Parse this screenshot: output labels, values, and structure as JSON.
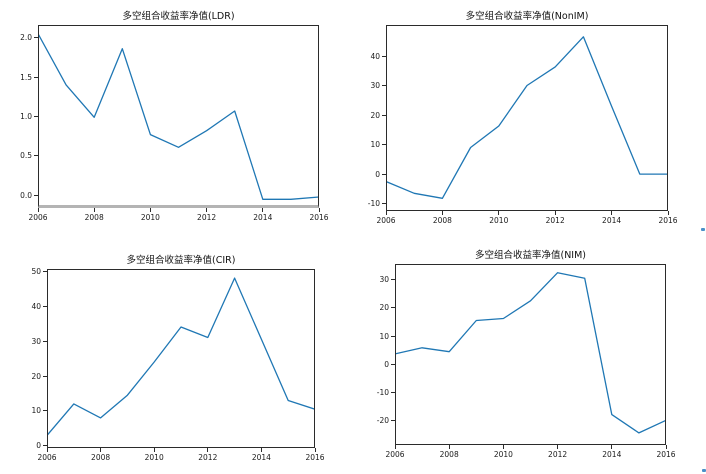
{
  "figure": {
    "background": "#ffffff",
    "line_color": "#1f77b4"
  },
  "chart_data": [
    {
      "type": "line",
      "title": "多空组合收益率净值(LDR)",
      "x": [
        2006,
        2007,
        2008,
        2009,
        2010,
        2011,
        2012,
        2013,
        2014,
        2015,
        2016
      ],
      "values": [
        2.05,
        1.4,
        0.99,
        1.86,
        0.77,
        0.61,
        0.82,
        1.07,
        -0.05,
        -0.05,
        -0.02
      ],
      "xticks": [
        {
          "v": 2006,
          "label": "2006"
        },
        {
          "v": 2008,
          "label": "2008"
        },
        {
          "v": 2010,
          "label": "2010"
        },
        {
          "v": 2012,
          "label": "2012"
        },
        {
          "v": 2014,
          "label": "2014"
        },
        {
          "v": 2016,
          "label": "2016"
        }
      ],
      "yticks": [
        {
          "v": 0.0,
          "label": "0.0"
        },
        {
          "v": 0.5,
          "label": "0.5"
        },
        {
          "v": 1.0,
          "label": "1.0"
        },
        {
          "v": 1.5,
          "label": "1.5"
        },
        {
          "v": 2.0,
          "label": "2.0"
        }
      ],
      "xlim": [
        2006,
        2016
      ],
      "ylim": [
        -0.16,
        2.16
      ],
      "line_color": "#1f77b4",
      "grid": false,
      "legend": null
    },
    {
      "type": "line",
      "title": "多空组合收益率净值(NonIM)",
      "x": [
        2006,
        2007,
        2008,
        2009,
        2010,
        2011,
        2012,
        2013,
        2014,
        2015,
        2016
      ],
      "values": [
        -2.5,
        -6.5,
        -8.2,
        9.0,
        16.3,
        30.0,
        36.3,
        46.5,
        23.0,
        0.0,
        0.0
      ],
      "xticks": [
        {
          "v": 2006,
          "label": "2006"
        },
        {
          "v": 2008,
          "label": "2008"
        },
        {
          "v": 2010,
          "label": "2010"
        },
        {
          "v": 2012,
          "label": "2012"
        },
        {
          "v": 2014,
          "label": "2014"
        },
        {
          "v": 2016,
          "label": "2016"
        }
      ],
      "yticks": [
        {
          "v": -10,
          "label": "-10"
        },
        {
          "v": 0,
          "label": "0"
        },
        {
          "v": 10,
          "label": "10"
        },
        {
          "v": 20,
          "label": "20"
        },
        {
          "v": 30,
          "label": "30"
        },
        {
          "v": 40,
          "label": "40"
        }
      ],
      "xlim": [
        2006,
        2016
      ],
      "ylim": [
        -12.5,
        50.5
      ],
      "line_color": "#1f77b4",
      "grid": false,
      "legend": null
    },
    {
      "type": "line",
      "title": "多空组合收益率净值(CIR)",
      "x": [
        2006,
        2007,
        2008,
        2009,
        2010,
        2011,
        2012,
        2013,
        2014,
        2015,
        2016
      ],
      "values": [
        3.0,
        12.0,
        8.0,
        14.5,
        24.0,
        34.0,
        31.0,
        48.0,
        30.5,
        13.0,
        10.5
      ],
      "xticks": [
        {
          "v": 2006,
          "label": "2006"
        },
        {
          "v": 2008,
          "label": "2008"
        },
        {
          "v": 2010,
          "label": "2010"
        },
        {
          "v": 2012,
          "label": "2012"
        },
        {
          "v": 2014,
          "label": "2014"
        },
        {
          "v": 2016,
          "label": "2016"
        }
      ],
      "yticks": [
        {
          "v": 0,
          "label": "0"
        },
        {
          "v": 10,
          "label": "10"
        },
        {
          "v": 20,
          "label": "20"
        },
        {
          "v": 30,
          "label": "30"
        },
        {
          "v": 40,
          "label": "40"
        },
        {
          "v": 50,
          "label": "50"
        }
      ],
      "xlim": [
        2006,
        2016
      ],
      "ylim": [
        -0.6,
        50.6
      ],
      "line_color": "#1f77b4",
      "grid": false,
      "legend": null
    },
    {
      "type": "line",
      "title": "多空组合收益率净值(NIM)",
      "x": [
        2006,
        2007,
        2008,
        2009,
        2010,
        2011,
        2012,
        2013,
        2014,
        2015,
        2016
      ],
      "values": [
        3.6,
        5.8,
        4.4,
        15.5,
        16.2,
        22.5,
        32.5,
        30.5,
        -18.0,
        -24.5,
        -20.0
      ],
      "xticks": [
        {
          "v": 2006,
          "label": "2006"
        },
        {
          "v": 2008,
          "label": "2008"
        },
        {
          "v": 2010,
          "label": "2010"
        },
        {
          "v": 2012,
          "label": "2012"
        },
        {
          "v": 2014,
          "label": "2014"
        },
        {
          "v": 2016,
          "label": "2016"
        }
      ],
      "yticks": [
        {
          "v": -20,
          "label": "-20"
        },
        {
          "v": -10,
          "label": "-10"
        },
        {
          "v": 0,
          "label": "0"
        },
        {
          "v": 10,
          "label": "10"
        },
        {
          "v": 20,
          "label": "20"
        },
        {
          "v": 30,
          "label": "30"
        }
      ],
      "xlim": [
        2006,
        2016
      ],
      "ylim": [
        -28.8,
        35.6
      ],
      "line_color": "#1f77b4",
      "grid": false,
      "legend": null
    }
  ]
}
